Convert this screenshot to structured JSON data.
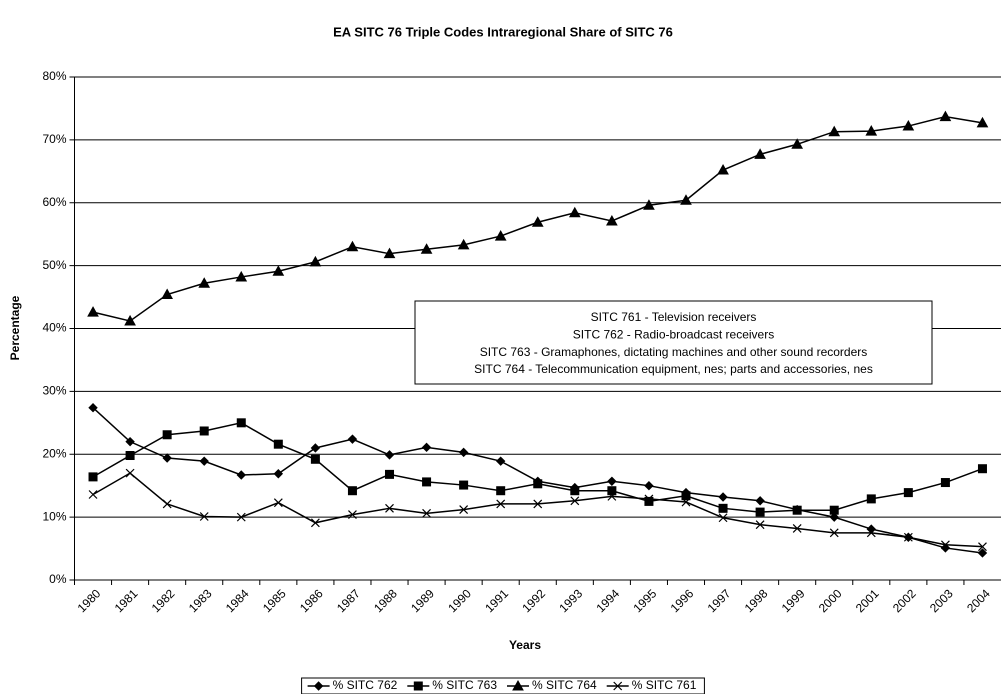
{
  "chart_data": {
    "type": "line",
    "title": "EA SITC 76 Triple Codes Intraregional Share of SITC 76",
    "x_label": "Years",
    "y_label": "Percentage",
    "categories": [
      "1980",
      "1981",
      "1982",
      "1983",
      "1984",
      "1985",
      "1986",
      "1987",
      "1988",
      "1989",
      "1990",
      "1991",
      "1992",
      "1993",
      "1994",
      "1995",
      "1996",
      "1997",
      "1998",
      "1999",
      "2000",
      "2001",
      "2002",
      "2003",
      "2004"
    ],
    "ylim": [
      0,
      80
    ],
    "yticks": [
      {
        "value": 0,
        "label": "0%"
      },
      {
        "value": 10,
        "label": "10%"
      },
      {
        "value": 20,
        "label": "20%"
      },
      {
        "value": 30,
        "label": "30%"
      },
      {
        "value": 40,
        "label": "40%"
      },
      {
        "value": 50,
        "label": "50%"
      },
      {
        "value": 60,
        "label": "60%"
      },
      {
        "value": 70,
        "label": "70%"
      },
      {
        "value": 80,
        "label": "80%"
      }
    ],
    "grid": true,
    "legend": "bottom",
    "annotations": [
      "SITC 761 - Television receivers",
      "SITC 762 - Radio-broadcast receivers",
      "SITC 763 - Gramaphones, dictating machines and other sound recorders",
      "SITC 764 - Telecommunication equipment, nes; parts and accessories, nes"
    ],
    "series": [
      {
        "name": "% SITC 762",
        "color": "#000000",
        "marker": "diamond",
        "values": [
          27.4,
          22.0,
          19.4,
          18.9,
          16.7,
          16.9,
          21.0,
          22.4,
          19.9,
          21.1,
          20.3,
          18.9,
          15.7,
          14.7,
          15.7,
          15.0,
          13.9,
          13.2,
          12.6,
          11.2,
          10.0,
          8.1,
          6.8,
          5.1,
          4.3
        ]
      },
      {
        "name": "% SITC 763",
        "color": "#000000",
        "marker": "square",
        "values": [
          16.4,
          19.8,
          23.1,
          23.7,
          25.0,
          21.6,
          19.2,
          14.2,
          16.8,
          15.6,
          15.1,
          14.2,
          15.3,
          14.2,
          14.2,
          12.5,
          13.4,
          11.4,
          10.8,
          11.1,
          11.1,
          12.9,
          13.9,
          15.5,
          17.7
        ]
      },
      {
        "name": "% SITC 764",
        "color": "#000000",
        "marker": "triangle",
        "values": [
          42.6,
          41.2,
          45.4,
          47.2,
          48.2,
          49.1,
          50.6,
          53.0,
          51.9,
          52.6,
          53.3,
          54.7,
          56.9,
          58.4,
          57.1,
          59.6,
          60.4,
          65.2,
          67.7,
          69.3,
          71.3,
          71.4,
          72.2,
          73.7,
          72.7
        ]
      },
      {
        "name": "% SITC 761",
        "color": "#000000",
        "marker": "x",
        "values": [
          13.6,
          17.0,
          12.1,
          10.1,
          10.0,
          12.3,
          9.1,
          10.4,
          11.4,
          10.6,
          11.2,
          12.1,
          12.1,
          12.6,
          13.3,
          12.9,
          12.4,
          9.9,
          8.8,
          8.2,
          7.5,
          7.5,
          6.8,
          5.6,
          5.3
        ]
      }
    ]
  }
}
